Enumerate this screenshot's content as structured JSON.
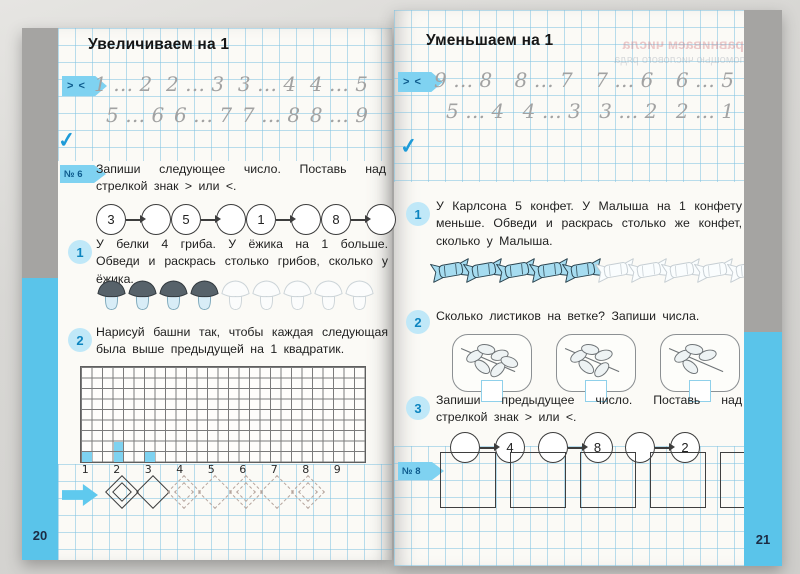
{
  "left": {
    "page_number": "20",
    "title": "Увеличиваем на 1",
    "compare_tag": "> <",
    "checkmark": "✓",
    "trace_rows": [
      [
        "1 … 2",
        "2 … 3",
        "3 … 4",
        "4 … 5"
      ],
      [
        "5 … 6",
        "6 … 7",
        "7 … 8",
        "8 … 9"
      ]
    ],
    "task6": {
      "tag": "№ 6",
      "text": "Запиши следующее число. Поставь над стрелкой знак > или <.",
      "start_numbers": [
        "3",
        "5",
        "1",
        "8"
      ]
    },
    "task1": {
      "number": "1",
      "text": "У белки 4 гриба. У ёжика на 1 больше. Обведи и раскрась столько грибов, сколько у ёжика.",
      "mushrooms_colored": 4,
      "mushrooms_outlined": 5
    },
    "task2": {
      "number": "2",
      "text": "Нарисуй башни так, чтобы каждая следующая была выше предыдущей на 1 квадратик.",
      "grid": {
        "columns": 27,
        "rows": 9,
        "axis_labels": [
          "1",
          "2",
          "3",
          "4",
          "5",
          "6",
          "7",
          "8",
          "9"
        ],
        "towers": [
          {
            "column": 1,
            "height": 1
          },
          {
            "column": 4,
            "height": 2
          },
          {
            "column": 7,
            "height": 1
          }
        ]
      }
    },
    "ornament_pattern": [
      "double-solid",
      "single-solid",
      "double-dotted",
      "single-dotted",
      "double-dotted",
      "single-dotted",
      "double-dotted"
    ]
  },
  "right": {
    "page_number": "21",
    "title": "Уменьшаем на 1",
    "ghost_lines": [
      "Сравниваем числа",
      "с помощью числового ряда"
    ],
    "compare_tag": "> <",
    "checkmark": "✓",
    "trace_rows": [
      [
        "9 … 8",
        "8 … 7",
        "7 … 6",
        "6 … 5"
      ],
      [
        "5 … 4",
        "4 … 3",
        "3 … 2",
        "2 … 1"
      ]
    ],
    "task1": {
      "number": "1",
      "text": "У Карлсона 5 конфет. У Малыша на 1 конфету меньше. Обведи и раскрась столько же конфет, сколько у Малыша.",
      "candies_colored": 5,
      "candies_outlined": 5
    },
    "task2": {
      "number": "2",
      "text": "Сколько листиков на ветке? Запиши числа.",
      "branches": [
        {
          "leaves": 6
        },
        {
          "leaves": 5
        },
        {
          "leaves": 4
        }
      ]
    },
    "task3": {
      "number": "3",
      "text": "Запиши предыдущее число. Поставь над стрелкой знак > или <.",
      "end_numbers": [
        "4",
        "8",
        "2"
      ]
    },
    "task8": {
      "tag": "№ 8",
      "squares": 5
    }
  }
}
